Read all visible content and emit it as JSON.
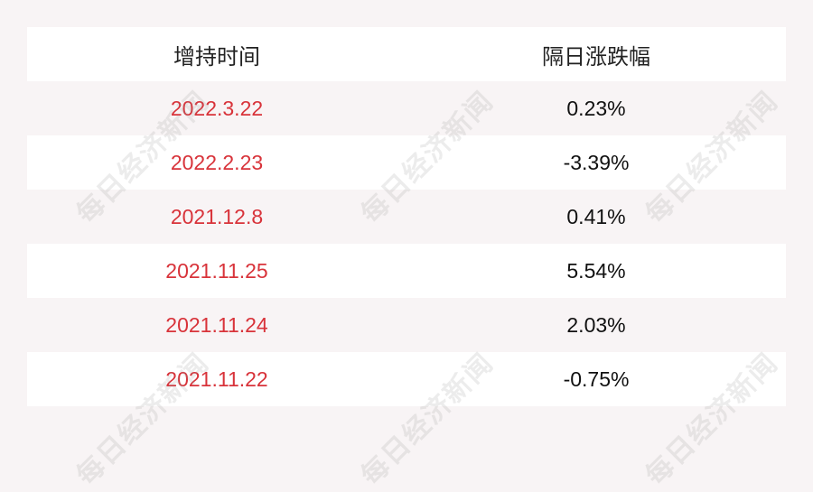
{
  "watermark": "每日经济新闻",
  "table": {
    "headers": [
      "增持时间",
      "隔日涨跌幅"
    ],
    "rows": [
      {
        "date": "2022.3.22",
        "change": "0.23%"
      },
      {
        "date": "2022.2.23",
        "change": "-3.39%"
      },
      {
        "date": "2021.12.8",
        "change": "0.41%"
      },
      {
        "date": "2021.11.25",
        "change": "5.54%"
      },
      {
        "date": "2021.11.24",
        "change": "2.03%"
      },
      {
        "date": "2021.11.22",
        "change": "-0.75%"
      }
    ]
  },
  "colors": {
    "date_text": "#d8333a",
    "background": "#f8f4f5",
    "row_alt": "#ffffff"
  }
}
